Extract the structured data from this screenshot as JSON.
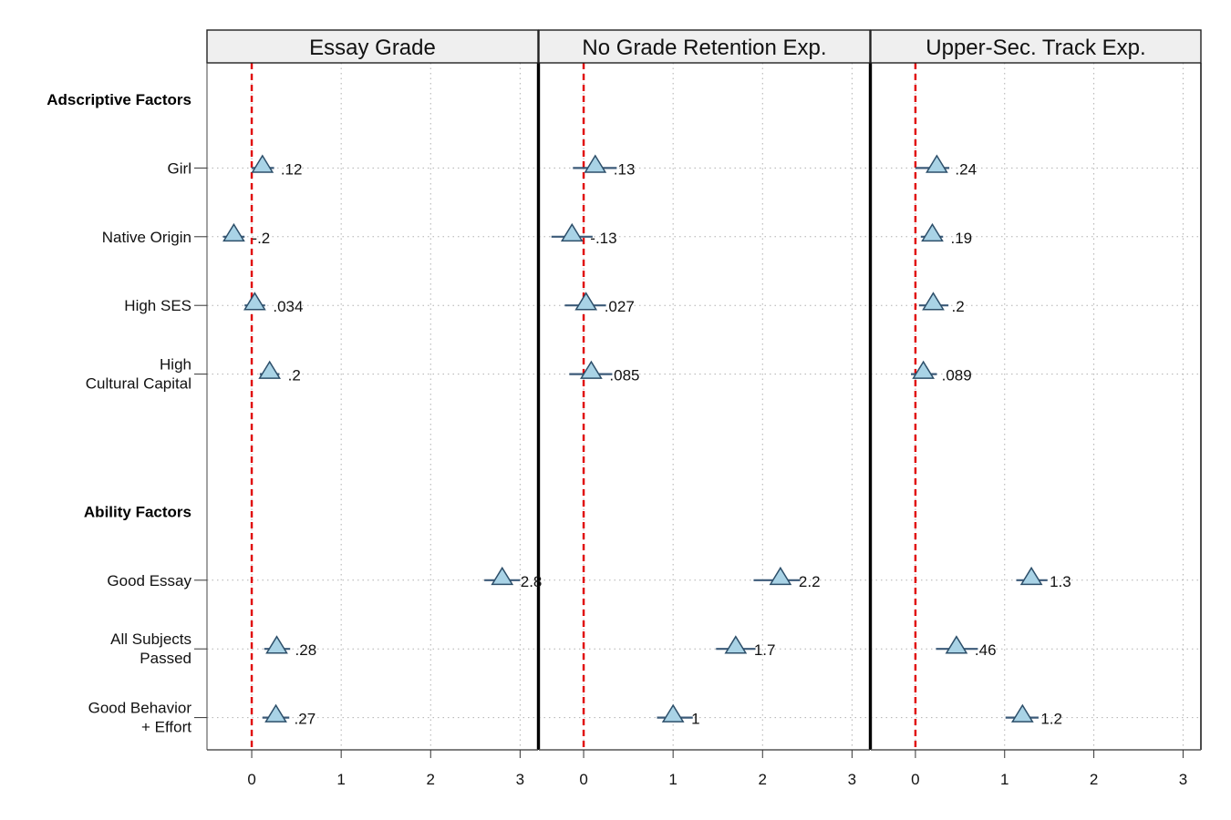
{
  "chart_data": {
    "type": "scatter",
    "subtype": "coefficient-plot",
    "marker": "triangle",
    "colors": {
      "marker_fill": "#a9d3e6",
      "marker_stroke": "#2d4f6a",
      "ci_line": "#3b5a78",
      "reference_line": "#e00000",
      "grid": "#b0b0b0",
      "strip": "#efefef"
    },
    "reference_x": 0,
    "xlim": [
      -0.5,
      3.2
    ],
    "xticks": [
      "0",
      "1",
      "2",
      "3"
    ],
    "grid": true,
    "sections": [
      {
        "label": "Adscriptive Factors",
        "row": 0
      },
      {
        "label": "Ability Factors",
        "row": 6
      }
    ],
    "rows": [
      {
        "label": [
          "Girl"
        ],
        "row": 1
      },
      {
        "label": [
          "Native Origin"
        ],
        "row": 2
      },
      {
        "label": [
          "High SES"
        ],
        "row": 3
      },
      {
        "label": [
          "High",
          "Cultural Capital"
        ],
        "row": 4
      },
      {
        "label": [
          "Good Essay"
        ],
        "row": 7
      },
      {
        "label": [
          "All Subjects",
          "Passed"
        ],
        "row": 8
      },
      {
        "label": [
          "Good Behavior",
          "+ Effort"
        ],
        "row": 9
      }
    ],
    "panels": [
      {
        "title": "Essay Grade",
        "points": [
          {
            "row": 1,
            "value": 0.12,
            "label": ".12",
            "ci": [
              0.0,
              0.25
            ]
          },
          {
            "row": 2,
            "value": -0.2,
            "label": "-.2",
            "ci": [
              -0.32,
              -0.08
            ]
          },
          {
            "row": 3,
            "value": 0.034,
            "label": ".034",
            "ci": [
              -0.08,
              0.15
            ]
          },
          {
            "row": 4,
            "value": 0.2,
            "label": ".2",
            "ci": [
              0.09,
              0.31
            ]
          },
          {
            "row": 7,
            "value": 2.8,
            "label": "2.8",
            "ci": [
              2.6,
              3.0
            ]
          },
          {
            "row": 8,
            "value": 0.28,
            "label": ".28",
            "ci": [
              0.14,
              0.43
            ]
          },
          {
            "row": 9,
            "value": 0.27,
            "label": ".27",
            "ci": [
              0.12,
              0.42
            ]
          }
        ]
      },
      {
        "title": "No Grade Retention Exp.",
        "points": [
          {
            "row": 1,
            "value": 0.13,
            "label": ".13",
            "ci": [
              -0.12,
              0.37
            ]
          },
          {
            "row": 2,
            "value": -0.13,
            "label": "-.13",
            "ci": [
              -0.36,
              0.1
            ]
          },
          {
            "row": 3,
            "value": 0.027,
            "label": ".027",
            "ci": [
              -0.21,
              0.25
            ]
          },
          {
            "row": 4,
            "value": 0.085,
            "label": ".085",
            "ci": [
              -0.16,
              0.32
            ]
          },
          {
            "row": 7,
            "value": 2.2,
            "label": "2.2",
            "ci": [
              1.9,
              2.42
            ]
          },
          {
            "row": 8,
            "value": 1.7,
            "label": "1.7",
            "ci": [
              1.48,
              1.92
            ]
          },
          {
            "row": 9,
            "value": 1.0,
            "label": "1",
            "ci": [
              0.82,
              1.22
            ]
          }
        ]
      },
      {
        "title": "Upper-Sec. Track Exp.",
        "points": [
          {
            "row": 1,
            "value": 0.24,
            "label": ".24",
            "ci": [
              0.0,
              0.38
            ]
          },
          {
            "row": 2,
            "value": 0.19,
            "label": ".19",
            "ci": [
              0.06,
              0.31
            ]
          },
          {
            "row": 3,
            "value": 0.2,
            "label": ".2",
            "ci": [
              0.04,
              0.37
            ]
          },
          {
            "row": 4,
            "value": 0.089,
            "label": ".089",
            "ci": [
              -0.05,
              0.24
            ]
          },
          {
            "row": 7,
            "value": 1.3,
            "label": "1.3",
            "ci": [
              1.13,
              1.48
            ]
          },
          {
            "row": 8,
            "value": 0.46,
            "label": ".46",
            "ci": [
              0.23,
              0.7
            ]
          },
          {
            "row": 9,
            "value": 1.2,
            "label": "1.2",
            "ci": [
              1.01,
              1.38
            ]
          }
        ]
      }
    ]
  }
}
